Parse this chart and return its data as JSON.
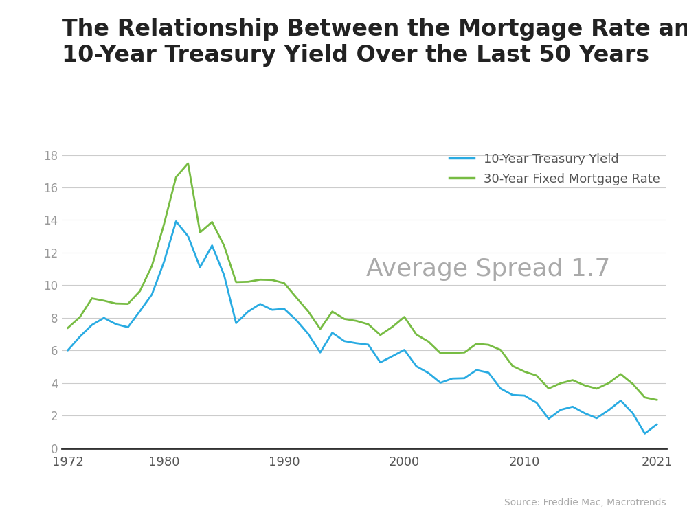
{
  "title_line1": "The Relationship Between the Mortgage Rate and the",
  "title_line2": "10-Year Treasury Yield Over the Last 50 Years",
  "annotation": "Average Spread 1.7",
  "source": "Source: Freddie Mac, Macrotrends",
  "legend_treasury": "10-Year Treasury Yield",
  "legend_mortgage": "30-Year Fixed Mortgage Rate",
  "color_treasury": "#29ABE2",
  "color_mortgage": "#77BC43",
  "background_color": "#FFFFFF",
  "header_bg_color": "#29ABE2",
  "ylim": [
    0,
    18.5
  ],
  "yticks": [
    0,
    2,
    4,
    6,
    8,
    10,
    12,
    14,
    16,
    18
  ],
  "xticks": [
    1972,
    1980,
    1990,
    2000,
    2010,
    2021
  ],
  "xlim": [
    1971.5,
    2021.8
  ],
  "title_fontsize": 24,
  "annotation_fontsize": 26,
  "annotation_color": "#AAAAAA",
  "years": [
    1972,
    1973,
    1974,
    1975,
    1976,
    1977,
    1978,
    1979,
    1980,
    1981,
    1982,
    1983,
    1984,
    1985,
    1986,
    1987,
    1988,
    1989,
    1990,
    1991,
    1992,
    1993,
    1994,
    1995,
    1996,
    1997,
    1998,
    1999,
    2000,
    2001,
    2002,
    2003,
    2004,
    2005,
    2006,
    2007,
    2008,
    2009,
    2010,
    2011,
    2012,
    2013,
    2014,
    2015,
    2016,
    2017,
    2018,
    2019,
    2020,
    2021
  ],
  "treasury_10yr": [
    6.01,
    6.84,
    7.56,
    7.99,
    7.61,
    7.42,
    8.41,
    9.44,
    11.43,
    13.92,
    13.01,
    11.1,
    12.44,
    10.62,
    7.67,
    8.38,
    8.85,
    8.49,
    8.55,
    7.86,
    7.01,
    5.87,
    7.08,
    6.57,
    6.44,
    6.35,
    5.26,
    5.64,
    6.03,
    5.02,
    4.61,
    4.01,
    4.27,
    4.29,
    4.79,
    4.63,
    3.66,
    3.26,
    3.22,
    2.78,
    1.8,
    2.35,
    2.54,
    2.14,
    1.84,
    2.33,
    2.91,
    2.14,
    0.89,
    1.45
  ],
  "mortgage_30yr": [
    7.38,
    8.04,
    9.19,
    9.05,
    8.87,
    8.85,
    9.64,
    11.2,
    13.74,
    16.63,
    17.48,
    13.24,
    13.88,
    12.43,
    10.19,
    10.21,
    10.34,
    10.32,
    10.13,
    9.25,
    8.39,
    7.31,
    8.38,
    7.93,
    7.81,
    7.6,
    6.94,
    7.44,
    8.05,
    6.97,
    6.54,
    5.83,
    5.84,
    5.87,
    6.41,
    6.34,
    6.03,
    5.04,
    4.69,
    4.45,
    3.66,
    3.98,
    4.17,
    3.85,
    3.65,
    3.99,
    4.54,
    3.94,
    3.11,
    2.96
  ]
}
